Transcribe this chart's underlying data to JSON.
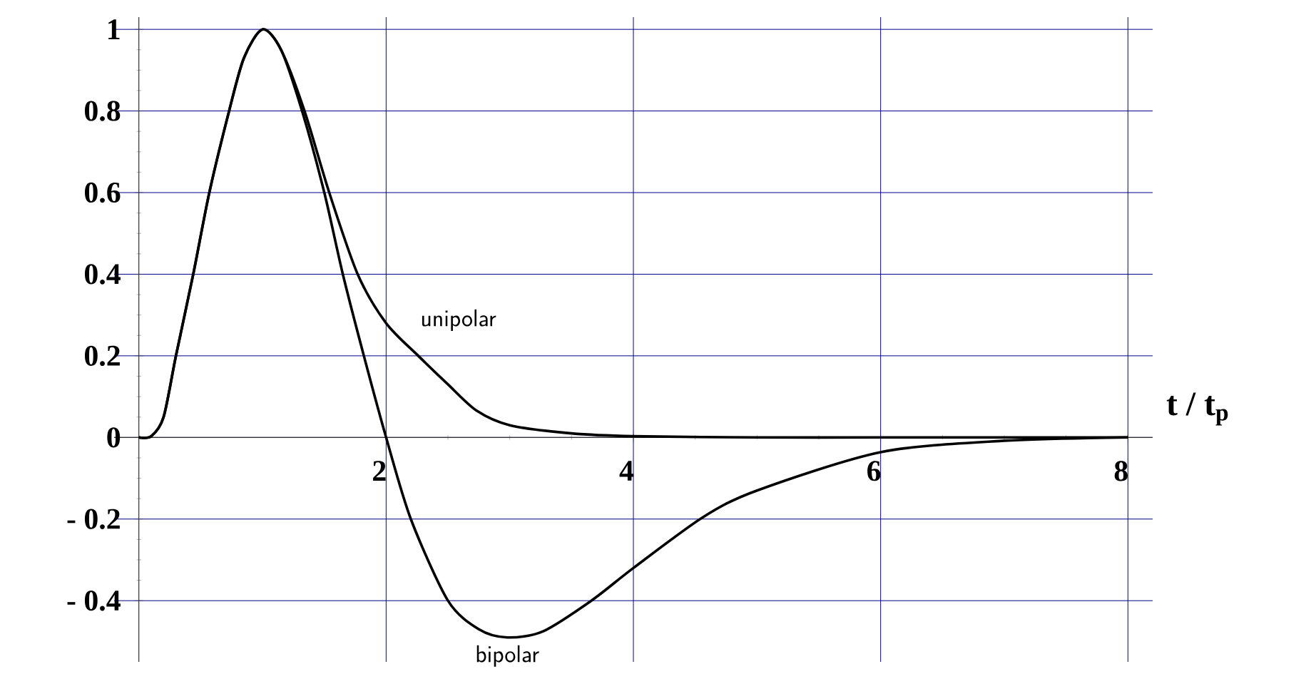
{
  "chart_data": {
    "type": "line",
    "xlabel": "t / t$_{p}$",
    "xlim": [
      -0.2,
      8.2
    ],
    "ylim": [
      -0.55,
      1.03
    ],
    "xticks": [
      2,
      4,
      6,
      8
    ],
    "yticks": [
      {
        "value": -0.4,
        "label": "- 0.4"
      },
      {
        "value": -0.2,
        "label": "- 0.2"
      },
      0,
      0.2,
      0.4,
      0.6,
      0.8,
      1
    ],
    "grid": true,
    "series": [
      {
        "name": "unipolar",
        "color": "#000000",
        "x": [
          0,
          0.1,
          0.2,
          0.3,
          0.44,
          0.57,
          0.73,
          0.85,
          1.0,
          1.15,
          1.34,
          1.54,
          1.77,
          2.0,
          2.26,
          2.5,
          2.73,
          3.0,
          3.5,
          4.0,
          5,
          6,
          7,
          8
        ],
        "values": [
          0,
          0.003,
          0.05,
          0.2,
          0.4,
          0.6,
          0.8,
          0.93,
          1.0,
          0.95,
          0.8,
          0.6,
          0.4,
          0.28,
          0.2,
          0.13,
          0.066,
          0.03,
          0.01,
          0.003,
          0,
          0,
          0,
          0
        ]
      },
      {
        "name": "bipolar",
        "color": "#000000",
        "x": [
          0,
          0.1,
          0.2,
          0.3,
          0.44,
          0.57,
          0.73,
          0.85,
          1.0,
          1.15,
          1.32,
          1.5,
          1.65,
          1.82,
          2.0,
          2.2,
          2.5,
          2.75,
          2.98,
          3.27,
          3.66,
          4.0,
          4.56,
          5.0,
          6.0,
          7.0,
          8.0
        ],
        "values": [
          0,
          0.003,
          0.05,
          0.2,
          0.4,
          0.6,
          0.8,
          0.93,
          1.0,
          0.95,
          0.8,
          0.6,
          0.4,
          0.2,
          0,
          -0.2,
          -0.4,
          -0.47,
          -0.49,
          -0.475,
          -0.4,
          -0.32,
          -0.196,
          -0.13,
          -0.036,
          -0.008,
          0
        ]
      }
    ]
  }
}
